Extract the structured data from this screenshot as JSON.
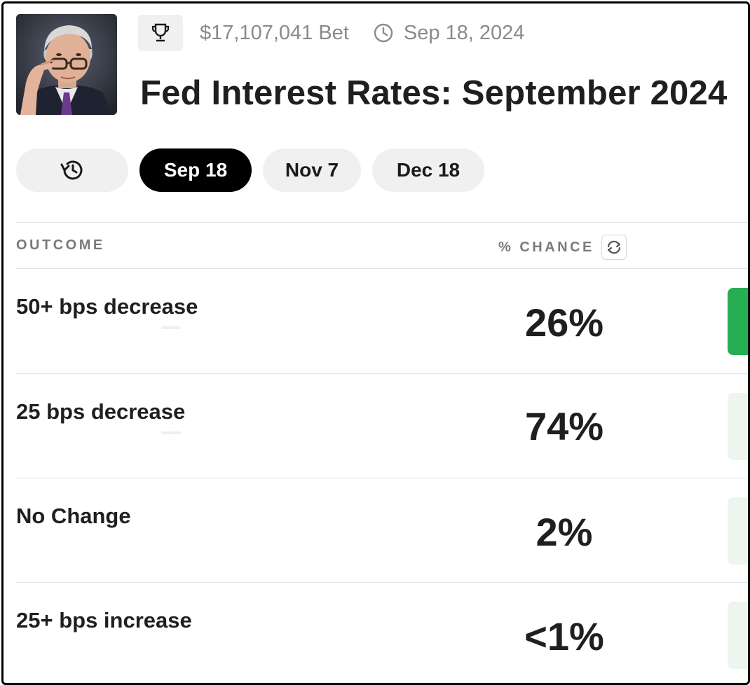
{
  "header": {
    "thumbnail_alt": "Jerome Powell portrait",
    "trophy_icon": "trophy-icon",
    "volume": "$17,107,041 Bet",
    "date": "Sep 18, 2024",
    "title": "Fed Interest Rates: September 2024"
  },
  "tabs": [
    {
      "label": "",
      "icon": "history-icon",
      "active": false
    },
    {
      "label": "Sep 18",
      "active": true
    },
    {
      "label": "Nov 7",
      "active": false
    },
    {
      "label": "Dec 18",
      "active": false
    }
  ],
  "table": {
    "col_outcome": "OUTCOME",
    "col_chance": "% CHANCE",
    "rows": [
      {
        "outcome": "50+ bps decrease",
        "chance": "26%",
        "bar_color": "#27ae55"
      },
      {
        "outcome": "25 bps decrease",
        "chance": "74%",
        "bar_color": "#edf5ee"
      },
      {
        "outcome": "No Change",
        "chance": "2%",
        "bar_color": "#edf5ee"
      },
      {
        "outcome": "25+ bps increase",
        "chance": "<1%",
        "bar_color": "#edf5ee"
      }
    ]
  },
  "colors": {
    "accent_green": "#27ae55",
    "active_tab": "#000000",
    "muted_text": "#8a8a8a"
  }
}
